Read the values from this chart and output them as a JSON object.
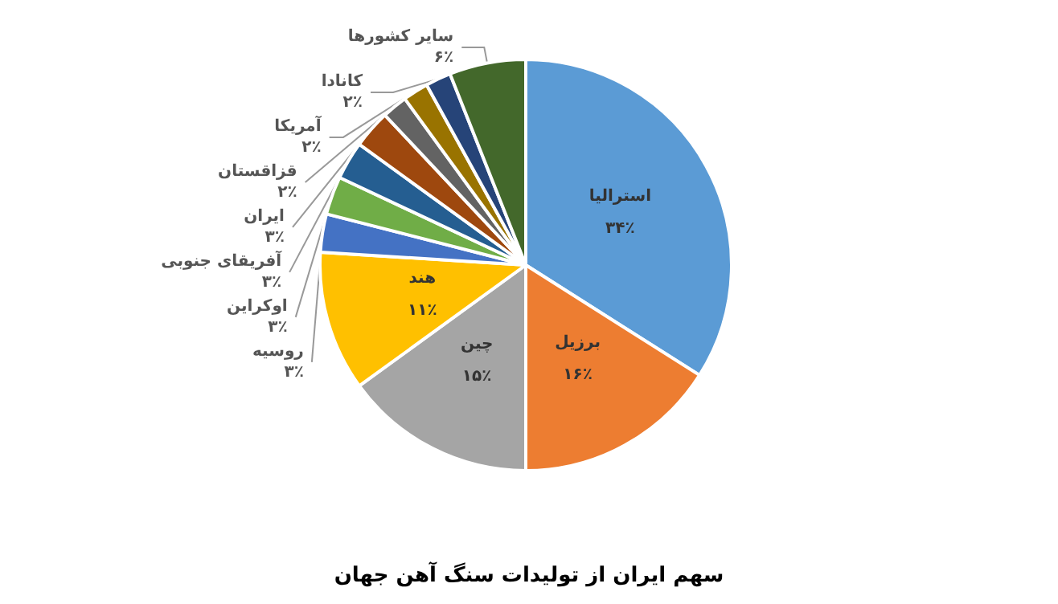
{
  "chart_data": {
    "type": "pie",
    "title": "سهم ایران از تولیدات سنگ آهن جهان",
    "categories": [
      "استرالیا",
      "برزیل",
      "چین",
      "هند",
      "روسیه",
      "اوکراین",
      "آفریقای جنوبی",
      "ایران",
      "قزاقستان",
      "آمریکا",
      "کانادا",
      "سایر کشورها"
    ],
    "values": [
      34,
      16,
      15,
      11,
      3,
      3,
      3,
      3,
      2,
      2,
      2,
      6
    ],
    "value_labels": [
      "۳۴٪",
      "۱۶٪",
      "۱۵٪",
      "۱۱٪",
      "۳٪",
      "۳٪",
      "۳٪",
      "۳٪",
      "۲٪",
      "۲٪",
      "۲٪",
      "۶٪"
    ],
    "colors": [
      "#5b9bd5",
      "#ed7d31",
      "#a5a5a5",
      "#ffc000",
      "#4472c4",
      "#70ad47",
      "#255e91",
      "#9e480e",
      "#636363",
      "#997300",
      "#264478",
      "#43682b"
    ],
    "legend": false
  }
}
